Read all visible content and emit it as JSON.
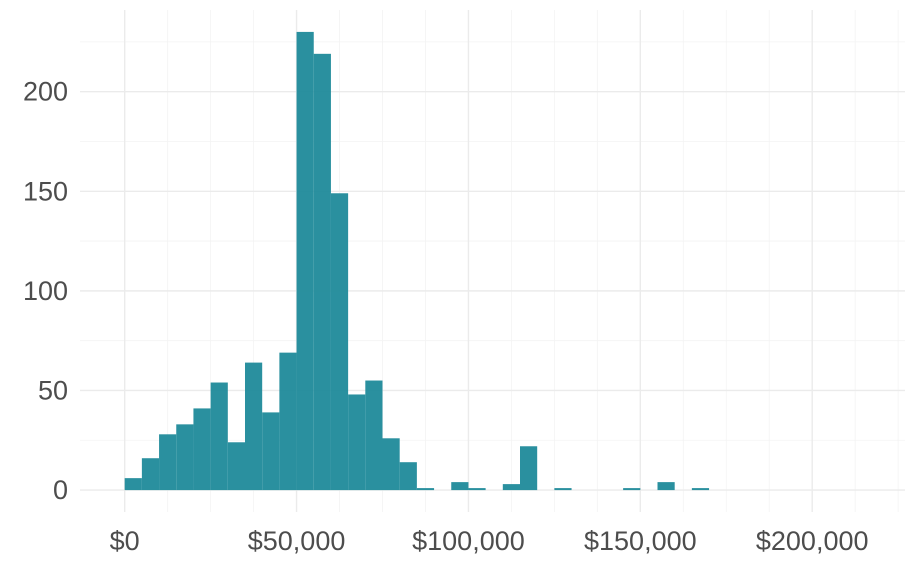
{
  "chart_data": {
    "type": "bar",
    "variant": "histogram",
    "title": "",
    "xlabel": "",
    "ylabel": "",
    "bar_color": "#1f8a9a",
    "xlim": [
      -13000,
      227000
    ],
    "ylim": [
      -11,
      241
    ],
    "grid": true,
    "x_major_ticks": [
      0,
      50000,
      100000,
      150000,
      200000
    ],
    "x_tick_labels": [
      "$0",
      "$50,000",
      "$100,000",
      "$150,000",
      "$200,000"
    ],
    "y_major_ticks": [
      0,
      50,
      100,
      150,
      200
    ],
    "y_tick_labels": [
      "0",
      "50",
      "100",
      "150",
      "200"
    ],
    "bin_width": 5000,
    "bins": [
      {
        "start": 0,
        "end": 5000,
        "count": 6
      },
      {
        "start": 5000,
        "end": 10000,
        "count": 16
      },
      {
        "start": 10000,
        "end": 15000,
        "count": 28
      },
      {
        "start": 15000,
        "end": 20000,
        "count": 33
      },
      {
        "start": 20000,
        "end": 25000,
        "count": 41
      },
      {
        "start": 25000,
        "end": 30000,
        "count": 54
      },
      {
        "start": 30000,
        "end": 35000,
        "count": 24
      },
      {
        "start": 35000,
        "end": 40000,
        "count": 64
      },
      {
        "start": 40000,
        "end": 45000,
        "count": 39
      },
      {
        "start": 45000,
        "end": 50000,
        "count": 69
      },
      {
        "start": 50000,
        "end": 55000,
        "count": 230
      },
      {
        "start": 55000,
        "end": 60000,
        "count": 219
      },
      {
        "start": 60000,
        "end": 65000,
        "count": 149
      },
      {
        "start": 65000,
        "end": 70000,
        "count": 48
      },
      {
        "start": 70000,
        "end": 75000,
        "count": 55
      },
      {
        "start": 75000,
        "end": 80000,
        "count": 26
      },
      {
        "start": 80000,
        "end": 85000,
        "count": 14
      },
      {
        "start": 85000,
        "end": 90000,
        "count": 1
      },
      {
        "start": 90000,
        "end": 95000,
        "count": 0
      },
      {
        "start": 95000,
        "end": 100000,
        "count": 4
      },
      {
        "start": 100000,
        "end": 105000,
        "count": 1
      },
      {
        "start": 105000,
        "end": 110000,
        "count": 0
      },
      {
        "start": 110000,
        "end": 115000,
        "count": 3
      },
      {
        "start": 115000,
        "end": 120000,
        "count": 22
      },
      {
        "start": 120000,
        "end": 125000,
        "count": 0
      },
      {
        "start": 125000,
        "end": 130000,
        "count": 1
      },
      {
        "start": 130000,
        "end": 135000,
        "count": 0
      },
      {
        "start": 135000,
        "end": 140000,
        "count": 0
      },
      {
        "start": 140000,
        "end": 145000,
        "count": 0
      },
      {
        "start": 145000,
        "end": 150000,
        "count": 1
      },
      {
        "start": 150000,
        "end": 155000,
        "count": 0
      },
      {
        "start": 155000,
        "end": 160000,
        "count": 4
      },
      {
        "start": 160000,
        "end": 165000,
        "count": 0
      },
      {
        "start": 165000,
        "end": 170000,
        "count": 1
      }
    ]
  }
}
